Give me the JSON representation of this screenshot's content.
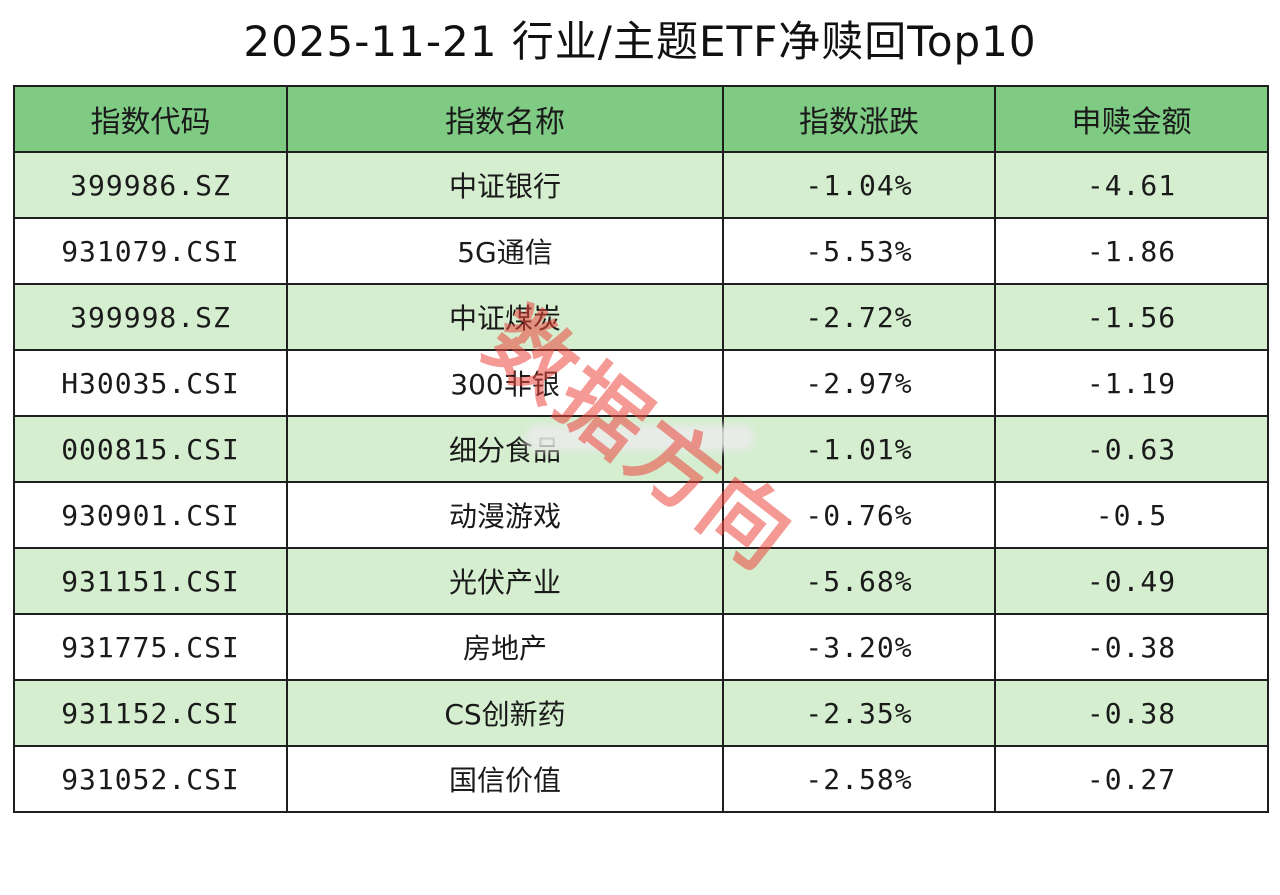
{
  "title": "2025-11-21 行业/主题ETF净赎回Top10",
  "table": {
    "headers": [
      "指数代码",
      "指数名称",
      "指数涨跌",
      "申赎金额"
    ],
    "rows": [
      [
        "399986.SZ",
        "中证银行",
        "-1.04%",
        "-4.61"
      ],
      [
        "931079.CSI",
        "5G通信",
        "-5.53%",
        "-1.86"
      ],
      [
        "399998.SZ",
        "中证煤炭",
        "-2.72%",
        "-1.56"
      ],
      [
        "H30035.CSI",
        "300非银",
        "-2.97%",
        "-1.19"
      ],
      [
        "000815.CSI",
        "细分食品",
        "-1.01%",
        "-0.63"
      ],
      [
        "930901.CSI",
        "动漫游戏",
        "-0.76%",
        "-0.5"
      ],
      [
        "931151.CSI",
        "光伏产业",
        "-5.68%",
        "-0.49"
      ],
      [
        "931775.CSI",
        "房地产",
        "-3.20%",
        "-0.38"
      ],
      [
        "931152.CSI",
        "CS创新药",
        "-2.35%",
        "-0.38"
      ],
      [
        "931052.CSI",
        "国信价值",
        "-2.58%",
        "-0.27"
      ]
    ]
  },
  "watermark": "数据方向",
  "colors": {
    "header_bg": "#7fcb84",
    "row_alt_bg": "#d4eecf",
    "row_bg": "#ffffff",
    "watermark": "#eb463c"
  }
}
